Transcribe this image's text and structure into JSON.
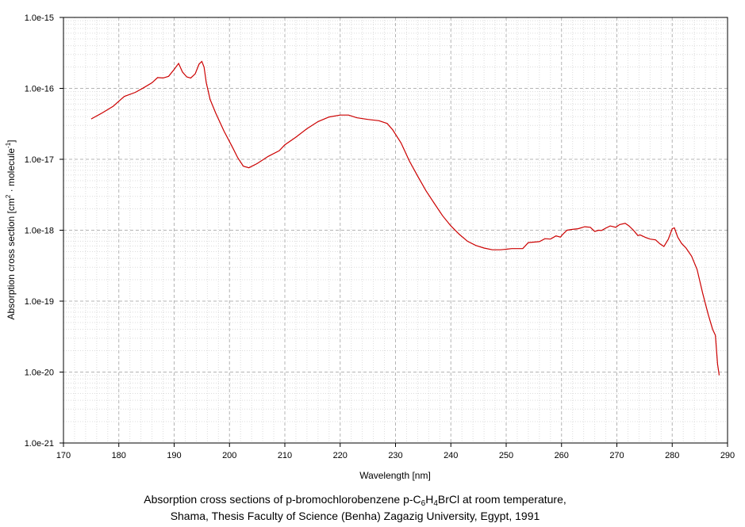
{
  "chart_data": {
    "type": "line",
    "xlabel": "Wavelength [nm]",
    "ylabel_parts": {
      "base": "Absorption cross section [cm",
      "sup1": "2",
      "mid": " · molecule",
      "sup2": "-1",
      "end": "]"
    },
    "xlim": [
      170,
      290
    ],
    "ylim": [
      1e-21,
      1e-15
    ],
    "yscale": "log",
    "grid": true,
    "x_ticks": [
      "170",
      "180",
      "190",
      "200",
      "210",
      "220",
      "230",
      "240",
      "250",
      "260",
      "270",
      "280",
      "290"
    ],
    "y_ticks": [
      "1.0e-21",
      "1.0e-20",
      "1.0e-19",
      "1.0e-18",
      "1.0e-17",
      "1.0e-16",
      "1.0e-15"
    ],
    "line_color": "#cc0000",
    "series": [
      {
        "x": [
          175,
          177,
          179,
          180,
          181,
          183,
          184.5,
          186,
          187,
          188,
          189,
          190,
          190.8,
          191.5,
          192.3,
          193,
          193.8,
          194.5,
          195,
          195.4,
          195.8,
          196.5,
          197.5,
          199,
          200.5,
          201.5,
          202.5,
          203.5,
          205,
          207,
          209,
          210,
          212,
          214,
          216,
          218,
          220,
          221.5,
          223,
          225,
          227,
          228.5,
          229.5,
          231,
          232.5,
          234,
          235.5,
          237,
          238.5,
          240,
          241.5,
          243,
          244.5,
          246,
          247.5,
          249,
          250,
          251,
          253,
          254,
          256,
          257,
          258,
          259,
          259.8,
          260.2,
          261,
          262,
          263,
          264.2,
          265.2,
          266,
          266.7,
          267.2,
          268,
          268.8,
          269.8,
          270.5,
          271.5,
          272.2,
          273,
          273.8,
          274.2,
          275.2,
          276,
          277,
          277.8,
          278.5,
          279.3,
          280,
          280.4,
          281,
          281.7,
          282.5,
          283.5,
          284.5,
          285.5,
          286.5,
          287.3,
          287.8,
          288.2,
          288.5
        ],
        "y": [
          3.7e-17,
          4.5e-17,
          5.6e-17,
          6.6e-17,
          7.7e-17,
          8.8e-17,
          1.02e-16,
          1.2e-16,
          1.42e-16,
          1.4e-16,
          1.48e-16,
          1.85e-16,
          2.25e-16,
          1.7e-16,
          1.45e-16,
          1.4e-16,
          1.6e-16,
          2.2e-16,
          2.4e-16,
          2e-16,
          1.2e-16,
          7e-17,
          4.5e-17,
          2.5e-17,
          1.5e-17,
          1.05e-17,
          8e-18,
          7.6e-18,
          8.7e-18,
          1.1e-17,
          1.32e-17,
          1.6e-17,
          2.05e-17,
          2.7e-17,
          3.4e-17,
          3.95e-17,
          4.2e-17,
          4.2e-17,
          3.85e-17,
          3.65e-17,
          3.5e-17,
          3.2e-17,
          2.6e-17,
          1.7e-17,
          9.5e-18,
          5.8e-18,
          3.6e-18,
          2.4e-18,
          1.6e-18,
          1.15e-18,
          8.8e-19,
          7e-19,
          6.1e-19,
          5.6e-19,
          5.3e-19,
          5.3e-19,
          5.4e-19,
          5.5e-19,
          5.5e-19,
          6.7e-19,
          6.9e-19,
          7.6e-19,
          7.5e-19,
          8.3e-19,
          8e-19,
          8.7e-19,
          1e-18,
          1.03e-18,
          1.05e-18,
          1.12e-18,
          1.1e-18,
          9.6e-19,
          1e-18,
          9.9e-19,
          1.07e-18,
          1.15e-18,
          1.1e-18,
          1.2e-18,
          1.25e-18,
          1.15e-18,
          1e-18,
          8.4e-19,
          8.6e-19,
          7.9e-19,
          7.5e-19,
          7.3e-19,
          6.4e-19,
          5.9e-19,
          7.5e-19,
          1.05e-18,
          1.08e-18,
          8e-19,
          6.5e-19,
          5.6e-19,
          4.3e-19,
          2.8e-19,
          1.3e-19,
          6.5e-20,
          4e-20,
          3.3e-20,
          1.3e-20,
          9e-21
        ]
      }
    ]
  },
  "caption": {
    "line1_pre": "Absorption cross sections of p-bromochlorobenzene p-C",
    "sub1": "6",
    "mid1": "H",
    "sub2": "4",
    "line1_post": "BrCl at room temperature,",
    "line2": "Shama, Thesis Faculty of Science (Benha) Zagazig University, Egypt, 1991"
  }
}
